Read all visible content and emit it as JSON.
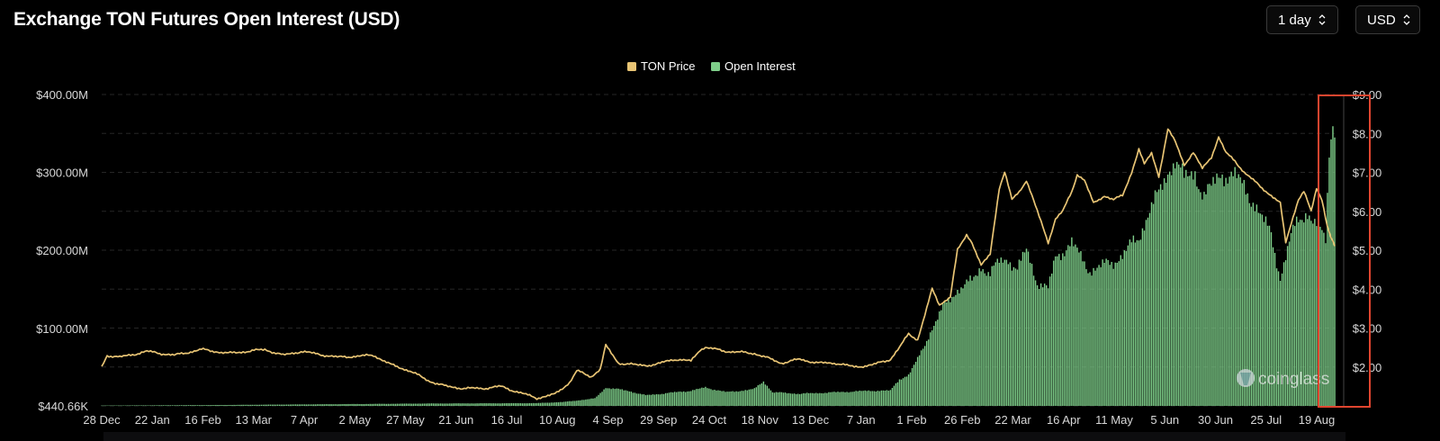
{
  "header": {
    "title": "Exchange TON Futures Open Interest (USD)",
    "period_label": "1 day",
    "currency_label": "USD"
  },
  "watermark": {
    "text": "coinglass"
  },
  "colors": {
    "background": "#000000",
    "price": "#e8c474",
    "open_interest": "#7fcf8a",
    "highlight_box": "#e0452f",
    "grid": "#262626",
    "axis_text": "#d8d8d8"
  },
  "chart_data": {
    "type": "bar+line",
    "title": "Exchange TON Futures Open Interest (USD)",
    "legend_placement": "top-center",
    "grid": true,
    "x_ticks": [
      "28 Dec",
      "22 Jan",
      "16 Feb",
      "13 Mar",
      "7 Apr",
      "2 May",
      "27 May",
      "21 Jun",
      "16 Jul",
      "10 Aug",
      "4 Sep",
      "29 Sep",
      "24 Oct",
      "18 Nov",
      "13 Dec",
      "7 Jan",
      "1 Feb",
      "26 Feb",
      "22 Mar",
      "16 Apr",
      "11 May",
      "5 Jun",
      "30 Jun",
      "25 Jul",
      "19 Aug"
    ],
    "left_axis": {
      "label": "",
      "ticks": [
        "$440.66K",
        "$100.00M",
        "$200.00M",
        "$300.00M",
        "$400.00M"
      ],
      "tick_values": [
        0.44066,
        100,
        200,
        300,
        400
      ],
      "range": [
        0.44066,
        400
      ]
    },
    "right_axis": {
      "label": "",
      "ticks": [
        "$2.00",
        "$3.00",
        "$4.00",
        "$5.00",
        "$6.00",
        "$7.00",
        "$8.00",
        "$9.00"
      ],
      "tick_values": [
        2,
        3,
        4,
        5,
        6,
        7,
        8,
        9
      ],
      "range": [
        1,
        9
      ]
    },
    "series": [
      {
        "name": "TON Price",
        "kind": "line",
        "axis": "right",
        "anchors": [
          [
            0,
            2.0
          ],
          [
            3,
            2.3
          ],
          [
            10,
            2.25
          ],
          [
            25,
            2.4
          ],
          [
            40,
            2.3
          ],
          [
            55,
            2.45
          ],
          [
            70,
            2.35
          ],
          [
            90,
            2.45
          ],
          [
            100,
            2.3
          ],
          [
            110,
            2.4
          ],
          [
            130,
            2.25
          ],
          [
            150,
            2.3
          ],
          [
            160,
            2.05
          ],
          [
            170,
            1.9
          ],
          [
            180,
            1.65
          ],
          [
            190,
            1.5
          ],
          [
            200,
            1.45
          ],
          [
            210,
            1.45
          ],
          [
            220,
            1.5
          ],
          [
            230,
            1.35
          ],
          [
            240,
            1.2
          ],
          [
            250,
            1.3
          ],
          [
            258,
            1.6
          ],
          [
            262,
            1.9
          ],
          [
            270,
            1.75
          ],
          [
            275,
            1.95
          ],
          [
            278,
            2.55
          ],
          [
            285,
            2.1
          ],
          [
            295,
            2.05
          ],
          [
            305,
            2.05
          ],
          [
            315,
            2.2
          ],
          [
            325,
            2.15
          ],
          [
            330,
            2.45
          ],
          [
            333,
            2.5
          ],
          [
            345,
            2.4
          ],
          [
            360,
            2.35
          ],
          [
            375,
            2.1
          ],
          [
            385,
            2.2
          ],
          [
            395,
            2.1
          ],
          [
            405,
            2.1
          ],
          [
            415,
            2.0
          ],
          [
            425,
            2.05
          ],
          [
            435,
            2.2
          ],
          [
            440,
            2.5
          ],
          [
            445,
            2.85
          ],
          [
            450,
            2.7
          ],
          [
            455,
            3.5
          ],
          [
            458,
            4.0
          ],
          [
            462,
            3.6
          ],
          [
            468,
            3.8
          ],
          [
            472,
            5.0
          ],
          [
            477,
            5.4
          ],
          [
            480,
            5.2
          ],
          [
            485,
            4.6
          ],
          [
            490,
            4.9
          ],
          [
            495,
            6.6
          ],
          [
            498,
            7.0
          ],
          [
            502,
            6.3
          ],
          [
            506,
            6.5
          ],
          [
            510,
            6.8
          ],
          [
            516,
            6.0
          ],
          [
            522,
            5.2
          ],
          [
            526,
            5.8
          ],
          [
            530,
            6.0
          ],
          [
            535,
            6.5
          ],
          [
            538,
            6.95
          ],
          [
            542,
            6.8
          ],
          [
            547,
            6.2
          ],
          [
            553,
            6.4
          ],
          [
            558,
            6.3
          ],
          [
            563,
            6.4
          ],
          [
            568,
            7.0
          ],
          [
            572,
            7.6
          ],
          [
            575,
            7.2
          ],
          [
            579,
            7.5
          ],
          [
            583,
            6.9
          ],
          [
            588,
            8.1
          ],
          [
            592,
            7.8
          ],
          [
            597,
            7.2
          ],
          [
            602,
            7.5
          ],
          [
            607,
            7.1
          ],
          [
            612,
            7.4
          ],
          [
            616,
            7.9
          ],
          [
            620,
            7.5
          ],
          [
            625,
            7.3
          ],
          [
            630,
            7.0
          ],
          [
            635,
            6.8
          ],
          [
            640,
            6.6
          ],
          [
            645,
            6.4
          ],
          [
            650,
            6.2
          ],
          [
            653,
            5.2
          ],
          [
            656,
            5.7
          ],
          [
            660,
            6.3
          ],
          [
            663,
            6.5
          ],
          [
            667,
            6.0
          ],
          [
            670,
            6.6
          ],
          [
            673,
            6.3
          ],
          [
            676,
            5.6
          ],
          [
            678,
            5.3
          ],
          [
            680,
            5.1
          ]
        ]
      },
      {
        "name": "Open Interest",
        "kind": "bar",
        "axis": "left",
        "anchors": [
          [
            0,
            0.9
          ],
          [
            60,
            1.5
          ],
          [
            120,
            2.5
          ],
          [
            180,
            3.5
          ],
          [
            240,
            4.0
          ],
          [
            255,
            5.5
          ],
          [
            272,
            10
          ],
          [
            278,
            24
          ],
          [
            290,
            20
          ],
          [
            300,
            14
          ],
          [
            325,
            20
          ],
          [
            333,
            24
          ],
          [
            345,
            18
          ],
          [
            360,
            22
          ],
          [
            365,
            32
          ],
          [
            370,
            18
          ],
          [
            385,
            16
          ],
          [
            405,
            18
          ],
          [
            425,
            20
          ],
          [
            435,
            20
          ],
          [
            440,
            35
          ],
          [
            445,
            40
          ],
          [
            450,
            60
          ],
          [
            458,
            100
          ],
          [
            465,
            130
          ],
          [
            472,
            150
          ],
          [
            480,
            160
          ],
          [
            485,
            180
          ],
          [
            490,
            170
          ],
          [
            495,
            185
          ],
          [
            500,
            190
          ],
          [
            505,
            175
          ],
          [
            510,
            200
          ],
          [
            516,
            160
          ],
          [
            522,
            150
          ],
          [
            526,
            190
          ],
          [
            530,
            200
          ],
          [
            535,
            210
          ],
          [
            540,
            190
          ],
          [
            545,
            175
          ],
          [
            552,
            180
          ],
          [
            558,
            185
          ],
          [
            565,
            200
          ],
          [
            572,
            215
          ],
          [
            578,
            255
          ],
          [
            583,
            270
          ],
          [
            588,
            300
          ],
          [
            592,
            320
          ],
          [
            597,
            290
          ],
          [
            603,
            300
          ],
          [
            608,
            270
          ],
          [
            612,
            280
          ],
          [
            618,
            300
          ],
          [
            625,
            295
          ],
          [
            630,
            280
          ],
          [
            635,
            265
          ],
          [
            640,
            240
          ],
          [
            645,
            220
          ],
          [
            650,
            165
          ],
          [
            655,
            210
          ],
          [
            660,
            240
          ],
          [
            665,
            250
          ],
          [
            670,
            230
          ],
          [
            675,
            215
          ],
          [
            677,
            330
          ],
          [
            679,
            365
          ],
          [
            680,
            360
          ]
        ]
      }
    ]
  }
}
